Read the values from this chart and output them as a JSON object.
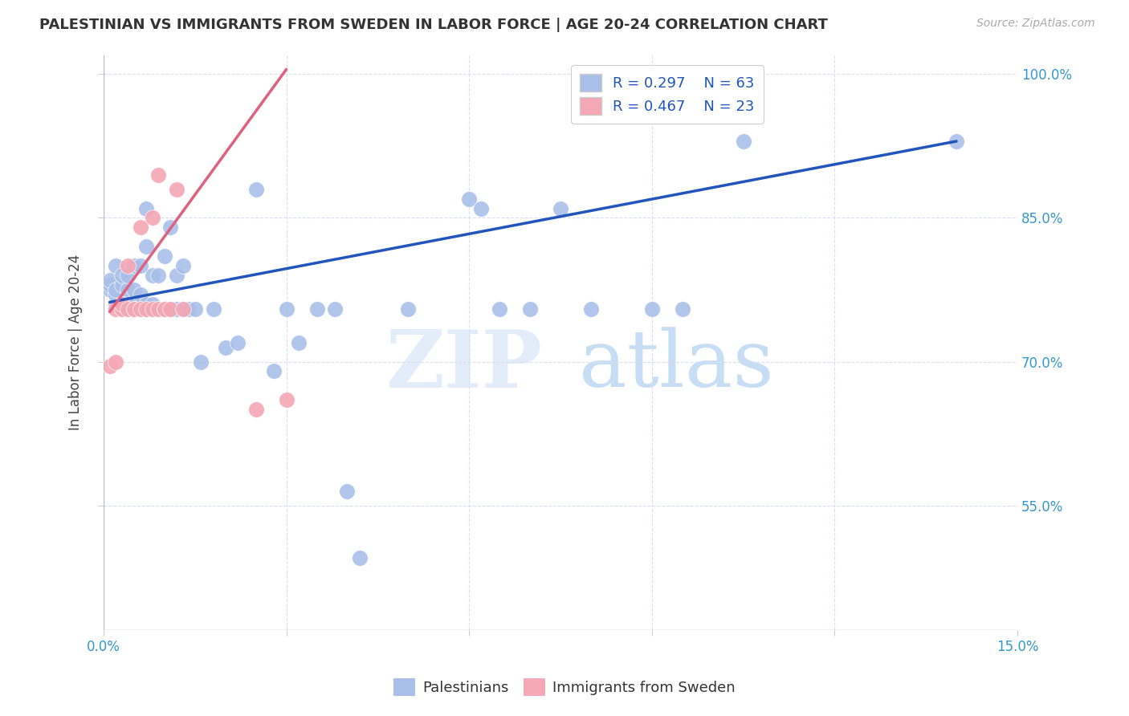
{
  "title": "PALESTINIAN VS IMMIGRANTS FROM SWEDEN IN LABOR FORCE | AGE 20-24 CORRELATION CHART",
  "source": "Source: ZipAtlas.com",
  "ylabel": "In Labor Force | Age 20-24",
  "xlim": [
    0.0,
    0.15
  ],
  "ylim": [
    0.42,
    1.02
  ],
  "xticks": [
    0.0,
    0.03,
    0.06,
    0.09,
    0.12,
    0.15
  ],
  "xtick_labels": [
    "0.0%",
    "",
    "",
    "",
    "",
    "15.0%"
  ],
  "ytick_labels_right": [
    "100.0%",
    "85.0%",
    "70.0%",
    "55.0%"
  ],
  "ytick_positions_right": [
    1.0,
    0.85,
    0.7,
    0.55
  ],
  "blue_R": 0.297,
  "blue_N": 63,
  "pink_R": 0.467,
  "pink_N": 23,
  "blue_color": "#aabfe8",
  "pink_color": "#f4a7b5",
  "blue_line_color": "#2255bb",
  "pink_line_color": "#e06080",
  "watermark_zip": "ZIP",
  "watermark_atlas": "atlas",
  "background_color": "#ffffff",
  "grid_color": "#d8dff0",
  "blue_scatter_x": [
    0.001,
    0.001,
    0.001,
    0.002,
    0.002,
    0.002,
    0.002,
    0.003,
    0.003,
    0.003,
    0.003,
    0.004,
    0.004,
    0.004,
    0.005,
    0.005,
    0.005,
    0.005,
    0.006,
    0.006,
    0.006,
    0.007,
    0.007,
    0.007,
    0.007,
    0.008,
    0.008,
    0.008,
    0.009,
    0.009,
    0.01,
    0.01,
    0.011,
    0.011,
    0.012,
    0.012,
    0.013,
    0.013,
    0.014,
    0.015,
    0.016,
    0.018,
    0.02,
    0.022,
    0.025,
    0.028,
    0.03,
    0.032,
    0.035,
    0.038,
    0.04,
    0.042,
    0.05,
    0.06,
    0.062,
    0.065,
    0.07,
    0.075,
    0.08,
    0.09,
    0.095,
    0.105,
    0.14
  ],
  "blue_scatter_y": [
    0.775,
    0.78,
    0.785,
    0.76,
    0.77,
    0.775,
    0.8,
    0.755,
    0.76,
    0.78,
    0.79,
    0.76,
    0.775,
    0.79,
    0.755,
    0.76,
    0.775,
    0.8,
    0.755,
    0.77,
    0.8,
    0.755,
    0.76,
    0.82,
    0.86,
    0.755,
    0.76,
    0.79,
    0.755,
    0.79,
    0.755,
    0.81,
    0.755,
    0.84,
    0.755,
    0.79,
    0.755,
    0.8,
    0.755,
    0.755,
    0.7,
    0.755,
    0.715,
    0.72,
    0.88,
    0.69,
    0.755,
    0.72,
    0.755,
    0.755,
    0.565,
    0.495,
    0.755,
    0.87,
    0.86,
    0.755,
    0.755,
    0.86,
    0.755,
    0.755,
    0.755,
    0.93,
    0.93
  ],
  "pink_scatter_x": [
    0.001,
    0.002,
    0.002,
    0.003,
    0.003,
    0.004,
    0.004,
    0.005,
    0.005,
    0.006,
    0.006,
    0.007,
    0.008,
    0.008,
    0.009,
    0.009,
    0.01,
    0.01,
    0.011,
    0.012,
    0.013,
    0.025,
    0.03
  ],
  "pink_scatter_y": [
    0.695,
    0.7,
    0.755,
    0.755,
    0.76,
    0.755,
    0.8,
    0.755,
    0.755,
    0.755,
    0.84,
    0.755,
    0.755,
    0.85,
    0.755,
    0.895,
    0.755,
    0.755,
    0.755,
    0.88,
    0.755,
    0.65,
    0.66
  ],
  "blue_line_x": [
    0.001,
    0.14
  ],
  "blue_line_y": [
    0.762,
    0.93
  ],
  "pink_line_x": [
    0.001,
    0.03
  ],
  "pink_line_y": [
    0.752,
    1.005
  ]
}
